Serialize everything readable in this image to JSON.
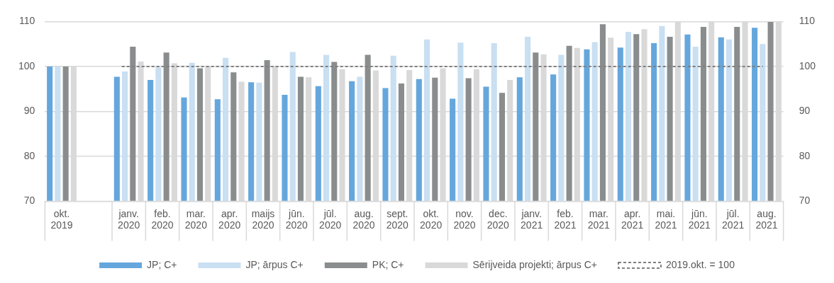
{
  "chart_data": {
    "type": "bar",
    "categories": [
      "okt.\n2019",
      null,
      "janv.\n2020",
      "feb.\n2020",
      "mar.\n2020",
      "apr.\n2020",
      "maijs\n2020",
      "jūn.\n2020",
      "jūl.\n2020",
      "aug.\n2020",
      "sept.\n2020",
      "okt.\n2020",
      "nov.\n2020",
      "dec.\n2020",
      "janv.\n2021",
      "feb.\n2021",
      "mar.\n2021",
      "apr.\n2021",
      "mai.\n2021",
      "jūn.\n2021",
      "jūl.\n2021",
      "aug.\n2021"
    ],
    "series": [
      {
        "name": "JP; C+",
        "color": "#65a7dc",
        "values": [
          100,
          null,
          97.7,
          97.0,
          93.1,
          92.7,
          96.5,
          93.7,
          95.6,
          96.7,
          95.2,
          97.2,
          92.8,
          95.5,
          97.6,
          98.2,
          103.8,
          104.2,
          105.2,
          107.1,
          106.5,
          108.6
        ]
      },
      {
        "name": "JP; ārpus C+",
        "color": "#c9dff2",
        "values": [
          100,
          null,
          98.9,
          99.8,
          100.8,
          101.9,
          96.4,
          103.2,
          102.6,
          97.7,
          102.4,
          106.0,
          105.3,
          105.2,
          106.6,
          102.6,
          105.4,
          107.7,
          109.0,
          104.4,
          106.0,
          105.0
        ]
      },
      {
        "name": "PK; C+",
        "color": "#8a8d8e",
        "values": [
          100,
          null,
          104.4,
          103.1,
          99.6,
          98.7,
          101.4,
          97.7,
          101.0,
          102.6,
          96.2,
          97.5,
          97.4,
          94.1,
          103.1,
          104.6,
          109.4,
          107.2,
          106.6,
          108.8,
          108.8,
          109.9
        ]
      },
      {
        "name": "Sērijveida projekti; ārpus C+",
        "color": "#d9d9d9",
        "values": [
          100,
          null,
          101.1,
          100.7,
          99.9,
          96.6,
          100.0,
          97.6,
          99.4,
          99.1,
          99.2,
          99.6,
          99.4,
          97.0,
          102.7,
          104.1,
          106.4,
          108.3,
          110,
          110,
          110,
          110
        ]
      }
    ],
    "ylim": [
      70,
      110
    ],
    "yticks": [
      70,
      80,
      90,
      100,
      110
    ],
    "y2lim": [
      70,
      110
    ],
    "y2ticks": [
      70,
      80,
      90,
      100,
      110
    ],
    "ref_lines": [
      {
        "axis": "y",
        "value": 100,
        "label": "2019.okt. = 100",
        "color": "#808080",
        "line_style": "dashed"
      }
    ],
    "grid": "y",
    "legend": "bottom"
  }
}
